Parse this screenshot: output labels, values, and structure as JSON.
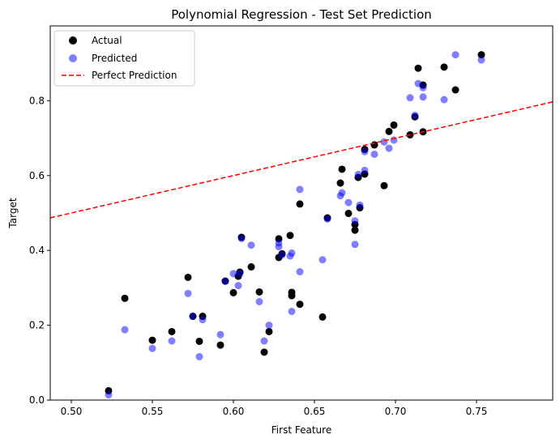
{
  "chart_data": {
    "type": "scatter",
    "title": "Polynomial Regression - Test Set Prediction",
    "xlabel": "First Feature",
    "ylabel": "Target",
    "xlim": [
      0.487,
      0.797
    ],
    "ylim": [
      0.0,
      1.0
    ],
    "xticks": [
      0.5,
      0.55,
      0.6,
      0.65,
      0.7,
      0.75
    ],
    "xtick_labels": [
      "0.50",
      "0.55",
      "0.60",
      "0.65",
      "0.70",
      "0.75"
    ],
    "yticks": [
      0.0,
      0.2,
      0.4,
      0.6,
      0.8
    ],
    "ytick_labels": [
      "0.0",
      "0.2",
      "0.4",
      "0.6",
      "0.8"
    ],
    "grid": false,
    "legend_position": "top-left",
    "legend": [
      "Actual",
      "Predicted",
      "Perfect Prediction"
    ],
    "series": [
      {
        "name": "Actual",
        "color": "#000000",
        "points": [
          [
            0.523,
            0.025
          ],
          [
            0.533,
            0.272
          ],
          [
            0.55,
            0.16
          ],
          [
            0.562,
            0.183
          ],
          [
            0.572,
            0.328
          ],
          [
            0.575,
            0.224
          ],
          [
            0.579,
            0.157
          ],
          [
            0.581,
            0.224
          ],
          [
            0.592,
            0.147
          ],
          [
            0.595,
            0.318
          ],
          [
            0.6,
            0.287
          ],
          [
            0.603,
            0.331
          ],
          [
            0.604,
            0.342
          ],
          [
            0.605,
            0.435
          ],
          [
            0.611,
            0.356
          ],
          [
            0.616,
            0.289
          ],
          [
            0.619,
            0.128
          ],
          [
            0.622,
            0.183
          ],
          [
            0.628,
            0.381
          ],
          [
            0.628,
            0.431
          ],
          [
            0.63,
            0.391
          ],
          [
            0.635,
            0.44
          ],
          [
            0.636,
            0.288
          ],
          [
            0.636,
            0.279
          ],
          [
            0.641,
            0.256
          ],
          [
            0.641,
            0.524
          ],
          [
            0.655,
            0.222
          ],
          [
            0.658,
            0.487
          ],
          [
            0.666,
            0.58
          ],
          [
            0.667,
            0.617
          ],
          [
            0.671,
            0.499
          ],
          [
            0.675,
            0.469
          ],
          [
            0.675,
            0.454
          ],
          [
            0.677,
            0.595
          ],
          [
            0.678,
            0.514
          ],
          [
            0.681,
            0.67
          ],
          [
            0.681,
            0.604
          ],
          [
            0.687,
            0.682
          ],
          [
            0.693,
            0.573
          ],
          [
            0.696,
            0.718
          ],
          [
            0.699,
            0.735
          ],
          [
            0.709,
            0.709
          ],
          [
            0.712,
            0.757
          ],
          [
            0.714,
            0.887
          ],
          [
            0.717,
            0.842
          ],
          [
            0.717,
            0.717
          ],
          [
            0.73,
            0.89
          ],
          [
            0.737,
            0.829
          ],
          [
            0.753,
            0.923
          ]
        ]
      },
      {
        "name": "Predicted",
        "color": "#0000ff",
        "points": [
          [
            0.523,
            0.014
          ],
          [
            0.533,
            0.188
          ],
          [
            0.55,
            0.138
          ],
          [
            0.562,
            0.158
          ],
          [
            0.572,
            0.285
          ],
          [
            0.575,
            0.224
          ],
          [
            0.579,
            0.116
          ],
          [
            0.581,
            0.215
          ],
          [
            0.592,
            0.175
          ],
          [
            0.595,
            0.318
          ],
          [
            0.6,
            0.338
          ],
          [
            0.603,
            0.306
          ],
          [
            0.604,
            0.338
          ],
          [
            0.605,
            0.432
          ],
          [
            0.611,
            0.414
          ],
          [
            0.616,
            0.263
          ],
          [
            0.619,
            0.158
          ],
          [
            0.622,
            0.2
          ],
          [
            0.628,
            0.41
          ],
          [
            0.628,
            0.42
          ],
          [
            0.63,
            0.388
          ],
          [
            0.635,
            0.385
          ],
          [
            0.636,
            0.393
          ],
          [
            0.636,
            0.237
          ],
          [
            0.641,
            0.343
          ],
          [
            0.641,
            0.563
          ],
          [
            0.655,
            0.375
          ],
          [
            0.658,
            0.484
          ],
          [
            0.666,
            0.546
          ],
          [
            0.667,
            0.554
          ],
          [
            0.671,
            0.528
          ],
          [
            0.675,
            0.479
          ],
          [
            0.675,
            0.416
          ],
          [
            0.677,
            0.603
          ],
          [
            0.678,
            0.521
          ],
          [
            0.681,
            0.664
          ],
          [
            0.681,
            0.614
          ],
          [
            0.687,
            0.657
          ],
          [
            0.693,
            0.69
          ],
          [
            0.696,
            0.673
          ],
          [
            0.699,
            0.695
          ],
          [
            0.709,
            0.808
          ],
          [
            0.712,
            0.761
          ],
          [
            0.714,
            0.846
          ],
          [
            0.717,
            0.835
          ],
          [
            0.717,
            0.81
          ],
          [
            0.73,
            0.803
          ],
          [
            0.737,
            0.923
          ],
          [
            0.753,
            0.909
          ]
        ]
      }
    ],
    "reference_line": {
      "name": "Perfect Prediction",
      "color": "#ff0000",
      "style": "dashed",
      "slope": 1,
      "intercept": 0
    }
  }
}
